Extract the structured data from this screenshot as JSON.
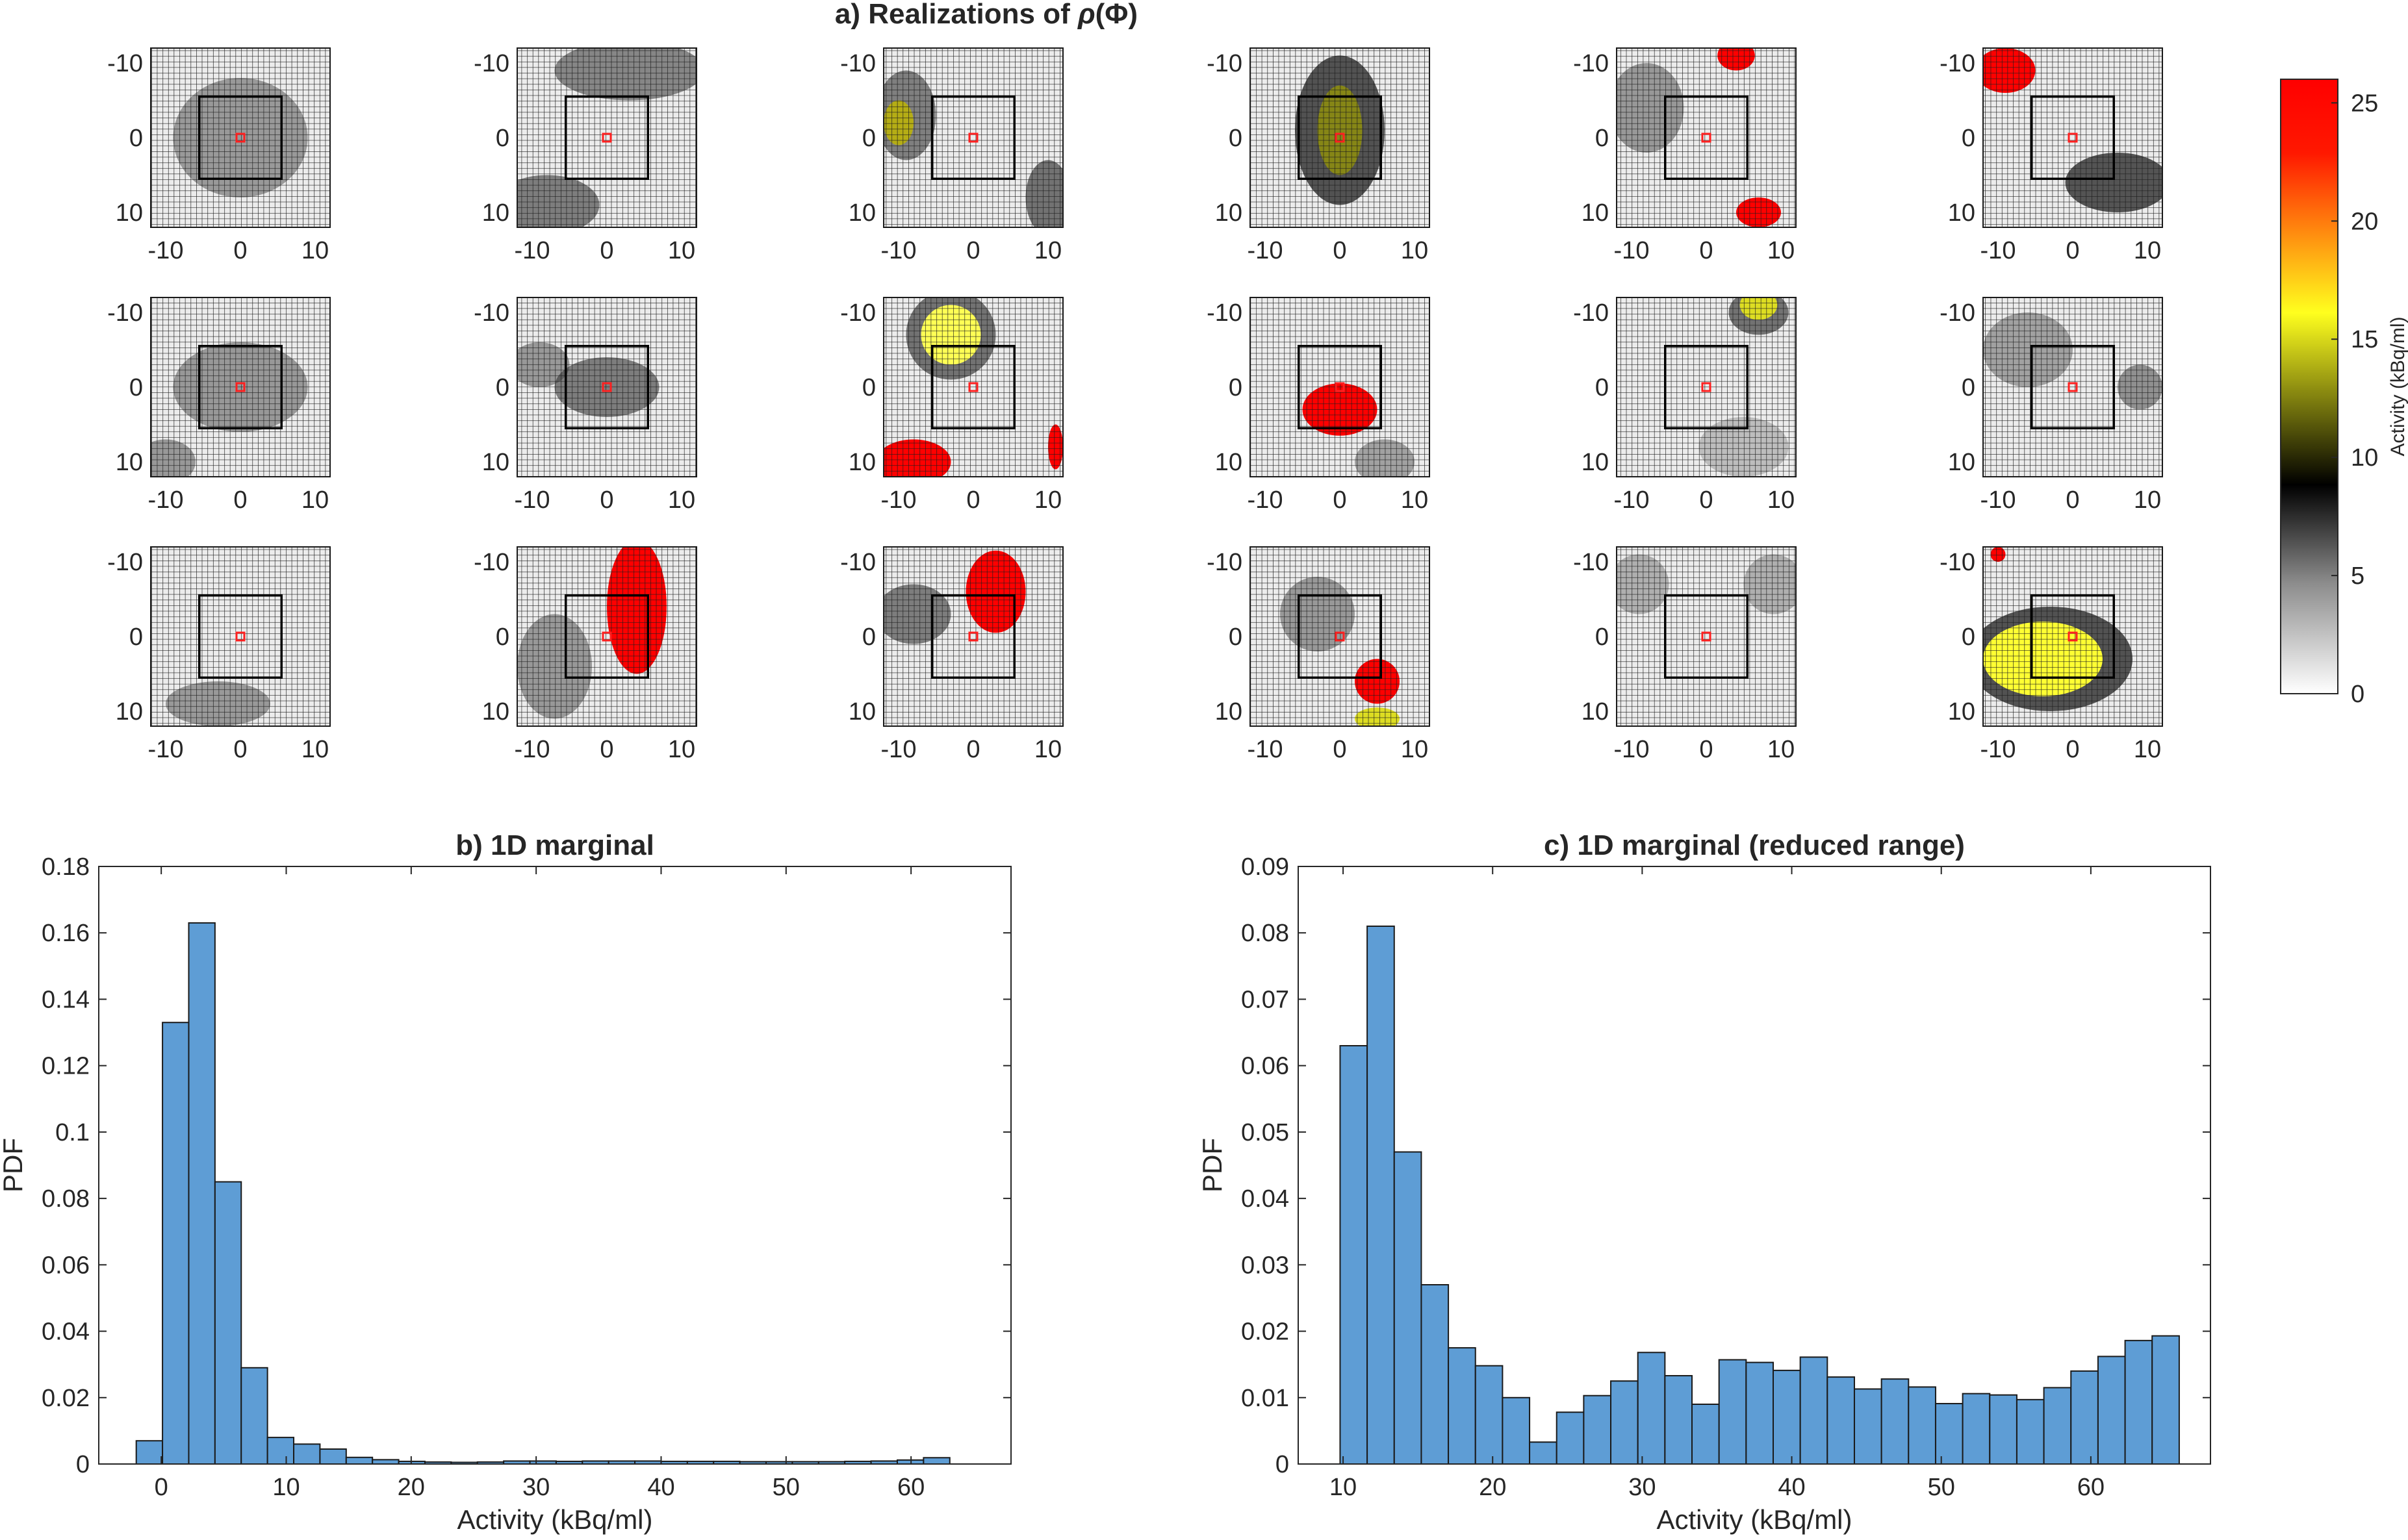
{
  "panel_a": {
    "title_prefix": "a)  Realizations  of ",
    "title_rho": "ρ",
    "title_phi": "(Φ)"
  },
  "colorbar": {
    "label": "Activity (kBq/ml)",
    "ticks": [
      "0",
      "5",
      "10",
      "15",
      "20",
      "25"
    ],
    "colors": [
      "#ffffff",
      "#808080",
      "#000000",
      "#ffff1e",
      "#ff0000"
    ]
  },
  "chart_data": [
    {
      "type": "heatmap",
      "title": "a) Realizations of ρ(Φ)",
      "grid": "3x6 realizations",
      "xlim": [
        -12,
        12
      ],
      "ylim": [
        -12,
        12
      ],
      "xticks": [
        "-10",
        "0",
        "10"
      ],
      "yticks": [
        "-10",
        "0",
        "10"
      ],
      "clim": [
        0,
        26
      ],
      "colorbar_label": "Activity (kBq/ml)"
    },
    {
      "type": "bar",
      "title": "b) 1D marginal",
      "xlabel": "Activity (kBq/ml)",
      "ylabel": "PDF",
      "bin_start": -2,
      "bin_width": 2.1,
      "values": [
        0.007,
        0.133,
        0.163,
        0.085,
        0.029,
        0.008,
        0.006,
        0.0045,
        0.002,
        0.0013,
        0.0008,
        0.0006,
        0.0005,
        0.0006,
        0.0009,
        0.0009,
        0.0008,
        0.0009,
        0.0009,
        0.0009,
        0.0008,
        0.0008,
        0.0008,
        0.0007,
        0.0007,
        0.0007,
        0.0007,
        0.0008,
        0.0009,
        0.0012,
        0.0019
      ],
      "xlim": [
        -5,
        68
      ],
      "ylim": [
        0,
        0.18
      ],
      "xticks": [
        "0",
        "10",
        "20",
        "30",
        "40",
        "50",
        "60"
      ],
      "yticks": [
        "0",
        "0.02",
        "0.04",
        "0.06",
        "0.08",
        "0.1",
        "0.12",
        "0.14",
        "0.16",
        "0.18"
      ]
    },
    {
      "type": "bar",
      "title": "c) 1D marginal (reduced range)",
      "xlabel": "Activity (kBq/ml)",
      "ylabel": "PDF",
      "bin_start": 9.8,
      "bin_width": 1.81,
      "values": [
        0.063,
        0.081,
        0.047,
        0.027,
        0.0175,
        0.0148,
        0.01,
        0.0033,
        0.0078,
        0.0103,
        0.0125,
        0.0168,
        0.0133,
        0.009,
        0.0157,
        0.0153,
        0.0141,
        0.0161,
        0.0131,
        0.0113,
        0.0128,
        0.0116,
        0.0091,
        0.0106,
        0.0104,
        0.0097,
        0.0115,
        0.014,
        0.0162,
        0.0186,
        0.0193
      ],
      "xlim": [
        7,
        68
      ],
      "ylim": [
        0,
        0.09
      ],
      "xticks": [
        "10",
        "20",
        "30",
        "40",
        "50",
        "60"
      ],
      "yticks": [
        "0",
        "0.01",
        "0.02",
        "0.03",
        "0.04",
        "0.05",
        "0.06",
        "0.07",
        "0.08",
        "0.09"
      ]
    }
  ]
}
